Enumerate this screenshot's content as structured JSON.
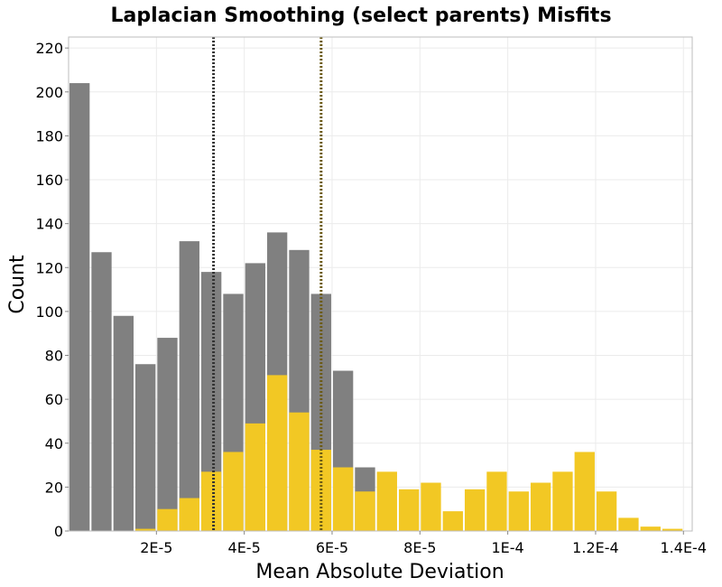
{
  "chart_data": {
    "type": "bar",
    "title": "Laplacian Smoothing (select parents) Misfits",
    "xlabel": "Mean Absolute Deviation",
    "ylabel": "Count",
    "xlim": [
      0.0,
      0.000142
    ],
    "ylim": [
      0,
      225
    ],
    "x_ticks": [
      {
        "value": 2e-05,
        "label": "2E-5"
      },
      {
        "value": 4e-05,
        "label": "4E-5"
      },
      {
        "value": 6e-05,
        "label": "6E-5"
      },
      {
        "value": 8e-05,
        "label": "8E-5"
      },
      {
        "value": 0.0001,
        "label": "1E-4"
      },
      {
        "value": 0.00012,
        "label": "1.2E-4"
      },
      {
        "value": 0.00014,
        "label": "1.4E-4"
      }
    ],
    "y_ticks": [
      0,
      20,
      40,
      60,
      80,
      100,
      120,
      140,
      160,
      180,
      200,
      220
    ],
    "bin_width": 5e-06,
    "bin_starts": [
      0.0,
      5e-06,
      1e-05,
      1.5e-05,
      2e-05,
      2.5e-05,
      3e-05,
      3.5e-05,
      4e-05,
      4.5e-05,
      5e-05,
      5.5e-05,
      6e-05,
      6.5e-05,
      7e-05,
      7.5e-05,
      8e-05,
      8.5e-05,
      9e-05,
      9.5e-05,
      0.0001,
      0.000105,
      0.00011,
      0.000115,
      0.00012,
      0.000125,
      0.00013,
      0.000135
    ],
    "series": [
      {
        "color": "#808080",
        "values": [
          204,
          127,
          98,
          76,
          88,
          132,
          118,
          108,
          122,
          136,
          128,
          108,
          73,
          29,
          0,
          0,
          0,
          0,
          0,
          0,
          0,
          0,
          0,
          0,
          0,
          0,
          0,
          0
        ]
      },
      {
        "color": "#f2c824",
        "values": [
          0,
          0,
          0,
          1,
          10,
          15,
          27,
          36,
          49,
          71,
          54,
          37,
          29,
          18,
          27,
          19,
          22,
          9,
          19,
          27,
          18,
          22,
          27,
          36,
          18,
          6,
          2,
          1
        ]
      }
    ],
    "reference_lines": [
      {
        "x": 3.3e-05,
        "color": "#333333",
        "style": "dotted"
      },
      {
        "x": 5.75e-05,
        "color": "#6b5a14",
        "style": "dotted"
      }
    ],
    "grid": true
  }
}
